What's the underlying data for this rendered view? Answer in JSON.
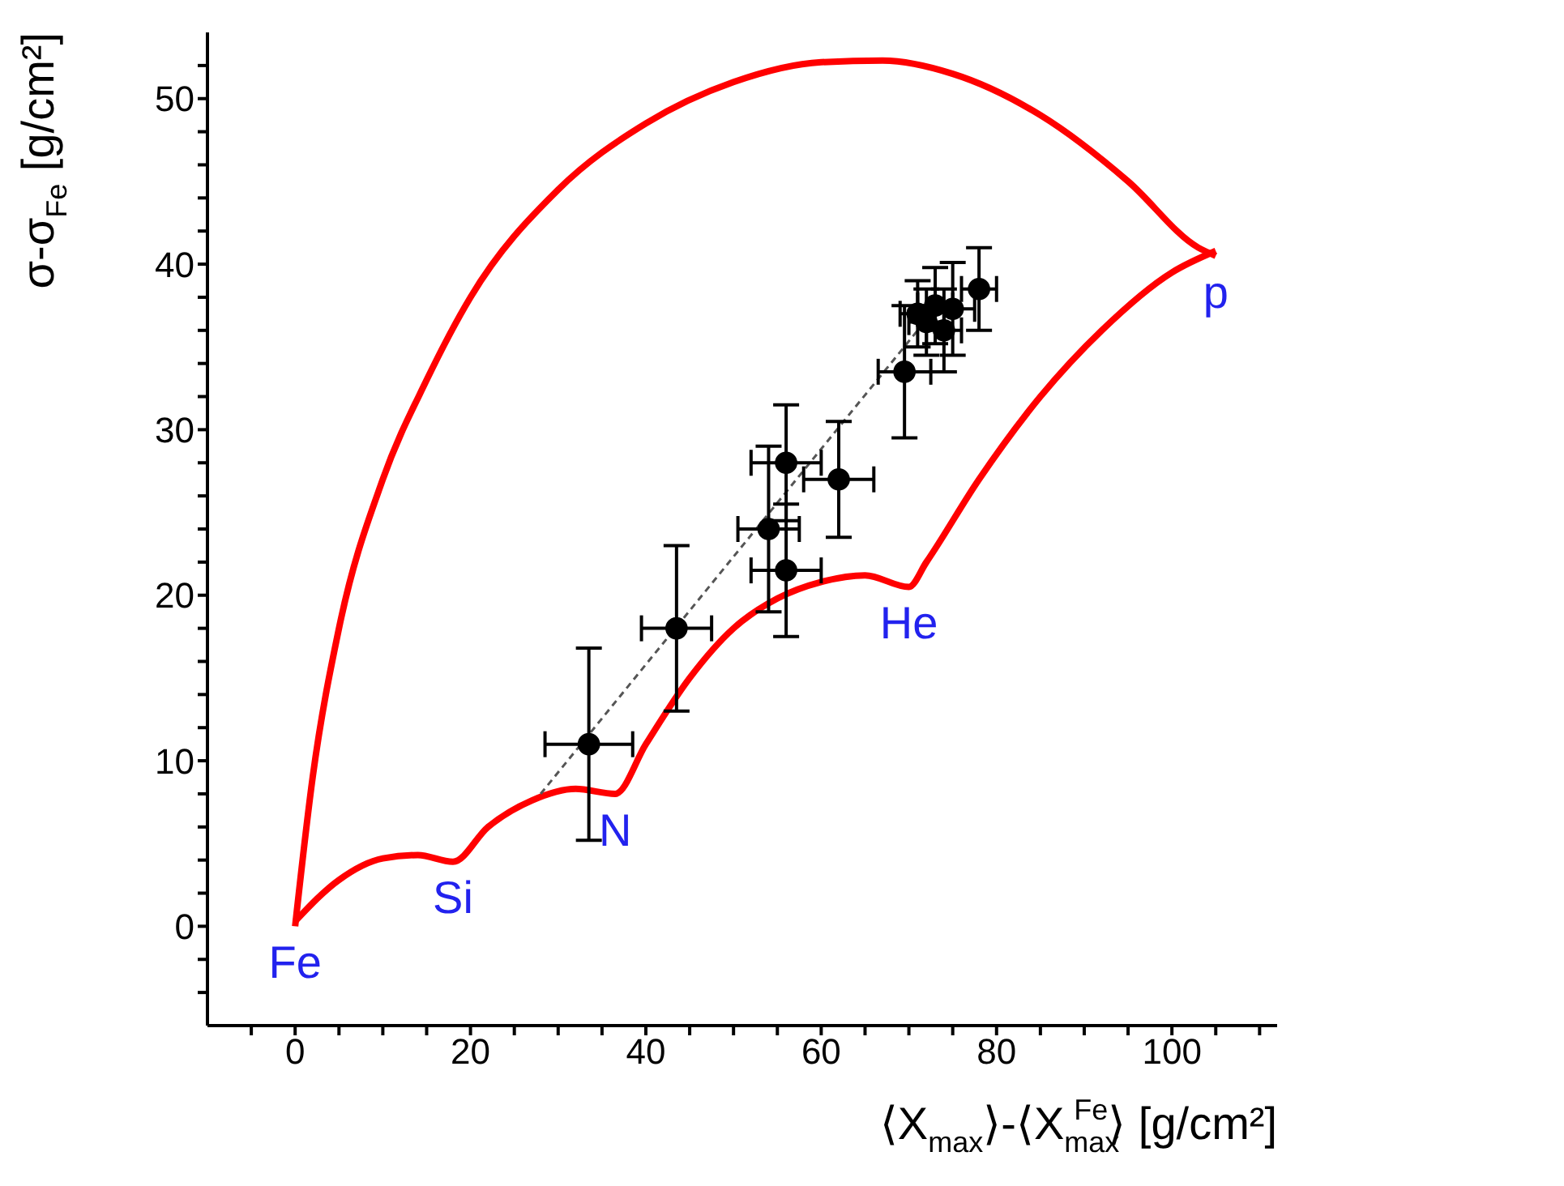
{
  "chart_data": {
    "type": "scatter",
    "xlabel": "⟨X$_{max}$⟩-⟨X$_{max}$$^{Fe}$⟩ [g/cm²]",
    "ylabel": "σ-σ$_{Fe}$ [g/cm²]",
    "xlim": [
      -10,
      112
    ],
    "ylim": [
      -6,
      54
    ],
    "xticks": [
      {
        "value": -5,
        "label": null
      },
      0,
      {
        "value": 5,
        "label": null
      },
      {
        "value": 10,
        "label": null
      },
      {
        "value": 15,
        "label": null
      },
      20,
      {
        "value": 25,
        "label": null
      },
      {
        "value": 30,
        "label": null
      },
      {
        "value": 35,
        "label": null
      },
      40,
      {
        "value": 45,
        "label": null
      },
      {
        "value": 50,
        "label": null
      },
      {
        "value": 55,
        "label": null
      },
      60,
      {
        "value": 65,
        "label": null
      },
      {
        "value": 70,
        "label": null
      },
      {
        "value": 75,
        "label": null
      },
      80,
      {
        "value": 85,
        "label": null
      },
      {
        "value": 90,
        "label": null
      },
      {
        "value": 95,
        "label": null
      },
      100,
      {
        "value": 105,
        "label": null
      },
      {
        "value": 110,
        "label": null
      }
    ],
    "yticks": [
      {
        "value": -4,
        "label": null
      },
      {
        "value": -2,
        "label": null
      },
      0,
      {
        "value": 2,
        "label": null
      },
      {
        "value": 4,
        "label": null
      },
      {
        "value": 6,
        "label": null
      },
      {
        "value": 8,
        "label": null
      },
      10,
      {
        "value": 12,
        "label": null
      },
      {
        "value": 14,
        "label": null
      },
      {
        "value": 16,
        "label": null
      },
      {
        "value": 18,
        "label": null
      },
      20,
      {
        "value": 22,
        "label": null
      },
      {
        "value": 24,
        "label": null
      },
      {
        "value": 26,
        "label": null
      },
      {
        "value": 28,
        "label": null
      },
      30,
      {
        "value": 32,
        "label": null
      },
      {
        "value": 34,
        "label": null
      },
      {
        "value": 36,
        "label": null
      },
      {
        "value": 38,
        "label": null
      },
      40,
      {
        "value": 42,
        "label": null
      },
      {
        "value": 44,
        "label": null
      },
      {
        "value": 46,
        "label": null
      },
      {
        "value": 48,
        "label": null
      },
      50,
      {
        "value": 52,
        "label": null
      }
    ],
    "grid": false,
    "legend": false,
    "series": [
      {
        "type": "line",
        "marker": "none",
        "color": "#ff0000",
        "line_style": "solid",
        "x": [
          0,
          2,
          5,
          10,
          15,
          20,
          30,
          40,
          50,
          60,
          67,
          75,
          85,
          95,
          103,
          105
        ],
        "values": [
          0,
          9,
          18,
          27,
          33,
          38,
          44.5,
          48.5,
          51,
          52.2,
          52.3,
          51.5,
          49,
          45,
          41,
          40.5
        ]
      },
      {
        "type": "line",
        "marker": "none",
        "color": "#ff0000",
        "line_style": "solid",
        "x": [
          0,
          5,
          10,
          14,
          18,
          22,
          27,
          32,
          36.5,
          40,
          45,
          50,
          55,
          60,
          65,
          70,
          72,
          78,
          85,
          92,
          100,
          105
        ],
        "values": [
          0.3,
          2.8,
          4.1,
          4.3,
          3.9,
          6,
          7.6,
          8.3,
          8,
          11,
          15,
          18,
          19.8,
          20.8,
          21.2,
          20.5,
          22,
          27,
          32,
          36,
          39.5,
          40.8
        ]
      },
      {
        "type": "line",
        "marker": "none",
        "color": "#555555",
        "line_style": "dashed",
        "x": [
          28,
          71
        ],
        "values": [
          8,
          36
        ]
      },
      {
        "marker": "circle",
        "color": "#000000",
        "x": [
          33.5,
          43.5,
          54,
          56,
          56,
          62,
          69.5,
          71,
          72,
          73,
          74,
          75,
          78
        ],
        "values": [
          11,
          18,
          24,
          28,
          21.5,
          27,
          33.5,
          37,
          36.5,
          37.5,
          36,
          37.3,
          38.5
        ],
        "errors": [
          5.8,
          5,
          5,
          3.5,
          4,
          3.5,
          4,
          2,
          2,
          2.3,
          2.5,
          2.8,
          2.5
        ],
        "xerrors": [
          5,
          4,
          3.5,
          4,
          4,
          4,
          3,
          2,
          2,
          2,
          2,
          2.5,
          2
        ]
      }
    ],
    "annotations": [
      {
        "text": "Fe",
        "x": 0,
        "y": 0
      },
      {
        "text": "Si",
        "x": 18,
        "y": 3.9
      },
      {
        "text": "N",
        "x": 36.5,
        "y": 8
      },
      {
        "text": "He",
        "x": 70,
        "y": 20.5
      },
      {
        "text": "p",
        "x": 105,
        "y": 40.5
      }
    ]
  }
}
